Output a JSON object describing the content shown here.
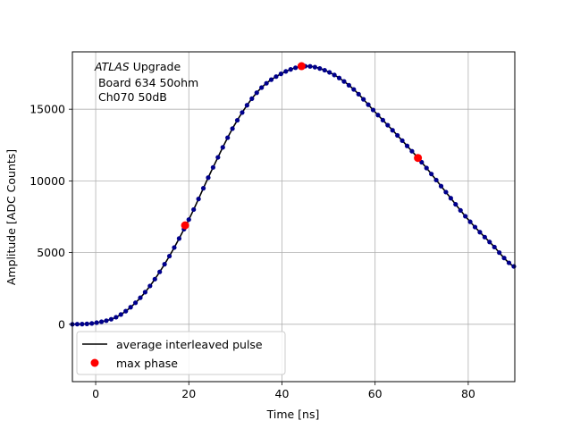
{
  "chart_data": {
    "type": "line",
    "xlabel": "Time [ns]",
    "ylabel": "Amplitude [ADC Counts]",
    "xlim": [
      -5,
      90
    ],
    "ylim": [
      -4000,
      19000
    ],
    "xticks": [
      0,
      20,
      40,
      60,
      80
    ],
    "yticks": [
      0,
      5000,
      10000,
      15000
    ],
    "grid": true,
    "legend_position": "lower-left",
    "annotation": {
      "line1_italic": "ATLAS",
      "line1_rest": " Upgrade",
      "line2": " Board 634 50ohm",
      "line3": " Ch070 50dB"
    },
    "series": [
      {
        "name": "average interleaved pulse",
        "color": "#000000",
        "marker_color": "#00008b",
        "x": [
          -5,
          0,
          5,
          10,
          15,
          20,
          25,
          30,
          35,
          40,
          45,
          50,
          55,
          60,
          65,
          70,
          75,
          80,
          85,
          90
        ],
        "y": [
          0,
          100,
          600,
          2000,
          4300,
          7300,
          10800,
          14000,
          16300,
          17500,
          18000,
          17600,
          16500,
          14800,
          13100,
          11300,
          9300,
          7300,
          5600,
          4000
        ]
      },
      {
        "name": "max phase",
        "color": "#ff0000",
        "x": [
          19.2,
          44.2,
          69.2
        ],
        "y": [
          6900,
          18000,
          11600
        ]
      }
    ]
  }
}
